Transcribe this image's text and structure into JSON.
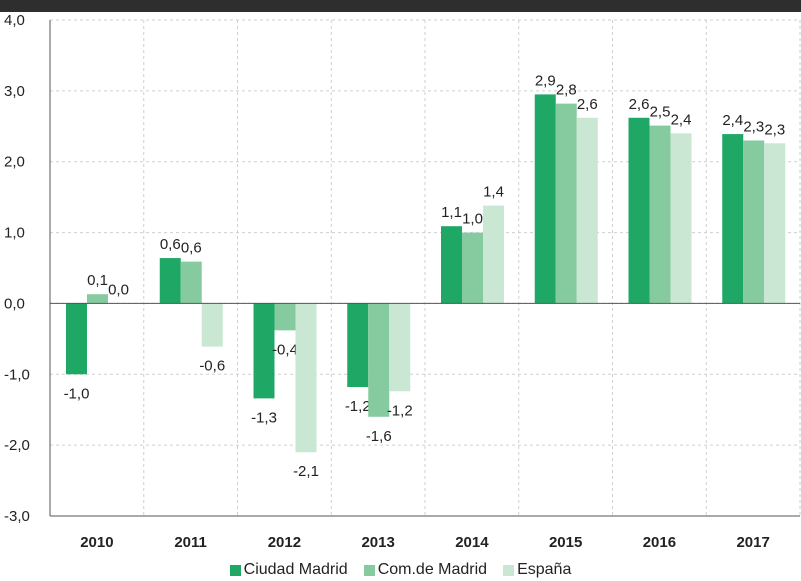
{
  "chart_data": {
    "type": "bar",
    "categories": [
      "2010",
      "2011",
      "2012",
      "2013",
      "2014",
      "2015",
      "2016",
      "2017"
    ],
    "series": [
      {
        "name": "Ciudad Madrid",
        "color": "#1fa865",
        "values": [
          -1.0,
          0.64,
          -1.34,
          -1.18,
          1.09,
          2.95,
          2.62,
          2.39
        ],
        "labels": [
          "-1,0",
          "0,6",
          "-1,3",
          "-1,2",
          "1,1",
          "2,9",
          "2,6",
          "2,4"
        ]
      },
      {
        "name": "Com.de Madrid",
        "color": "#86cba0",
        "values": [
          0.13,
          0.59,
          -0.38,
          -1.6,
          1.0,
          2.82,
          2.51,
          2.3
        ],
        "labels": [
          "0,1",
          "0,6",
          "-0,4",
          "-1,6",
          "1,0",
          "2,8",
          "2,5",
          "2,3"
        ]
      },
      {
        "name": "España",
        "color": "#c9e7d3",
        "values": [
          0.0,
          -0.61,
          -2.1,
          -1.24,
          1.38,
          2.62,
          2.4,
          2.26
        ],
        "labels": [
          "0,0",
          "-0,6",
          "-2,1",
          "-1,2",
          "1,4",
          "2,6",
          "2,4",
          "2,3"
        ]
      }
    ],
    "yticks": [
      "-3,0",
      "-2,0",
      "-1,0",
      "0,0",
      "1,0",
      "2,0",
      "3,0",
      "4,0"
    ],
    "ylim": [
      -3,
      4
    ],
    "grid": true,
    "legend": "bottom"
  }
}
